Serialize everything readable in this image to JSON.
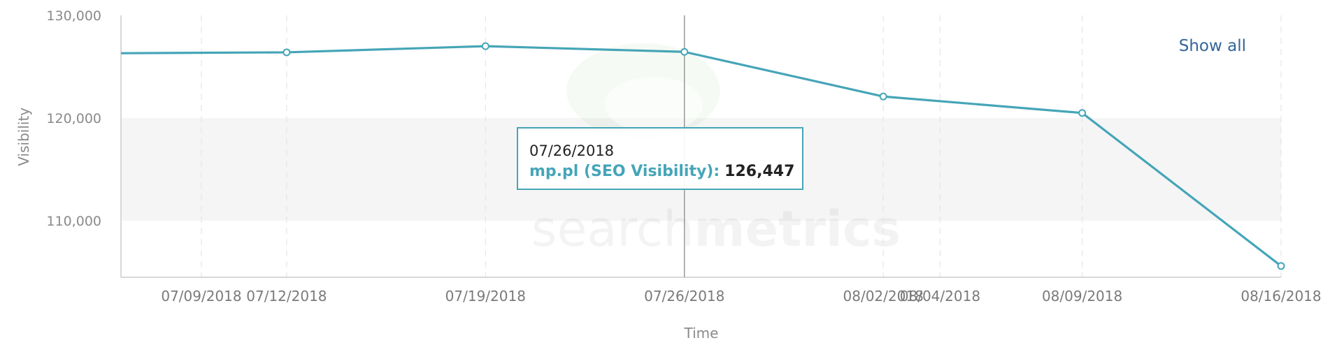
{
  "toolbar": {
    "show_all_label": "Show all"
  },
  "watermark": {
    "text_light": "search",
    "text_bold": "metrics"
  },
  "tooltip": {
    "date": "07/26/2018",
    "series_label": "mp.pl (SEO Visibility):",
    "value_text": "126,447"
  },
  "colors": {
    "line": "#45a5b8",
    "point_fill": "#ffffff",
    "grid": "#e6e6e6",
    "axis": "#cccccc",
    "crosshair": "#999999",
    "band": "#f5f5f5"
  },
  "chart_data": {
    "type": "line",
    "title": "",
    "xlabel": "Time",
    "ylabel": "Visibility",
    "ylim": [
      104500,
      130000
    ],
    "yticks": [
      110000,
      120000,
      130000
    ],
    "ytick_labels": [
      "110,000",
      "120,000",
      "130,000"
    ],
    "x_tick_labels": [
      "07/09/2018",
      "07/12/2018",
      "07/19/2018",
      "07/26/2018",
      "08/02/2018",
      "08/04/2018",
      "08/09/2018",
      "08/16/2018"
    ],
    "grid": true,
    "legend": "none",
    "highlight_date": "07/26/2018",
    "series": [
      {
        "name": "mp.pl (SEO Visibility)",
        "points": [
          {
            "date": "07/05/2018",
            "value": 126300,
            "marker": false
          },
          {
            "date": "07/12/2018",
            "value": 126400,
            "marker": true
          },
          {
            "date": "07/19/2018",
            "value": 127000,
            "marker": true
          },
          {
            "date": "07/26/2018",
            "value": 126447,
            "marker": true
          },
          {
            "date": "08/02/2018",
            "value": 122100,
            "marker": true
          },
          {
            "date": "08/09/2018",
            "value": 120500,
            "marker": true
          },
          {
            "date": "08/16/2018",
            "value": 105600,
            "marker": true
          }
        ]
      }
    ]
  }
}
